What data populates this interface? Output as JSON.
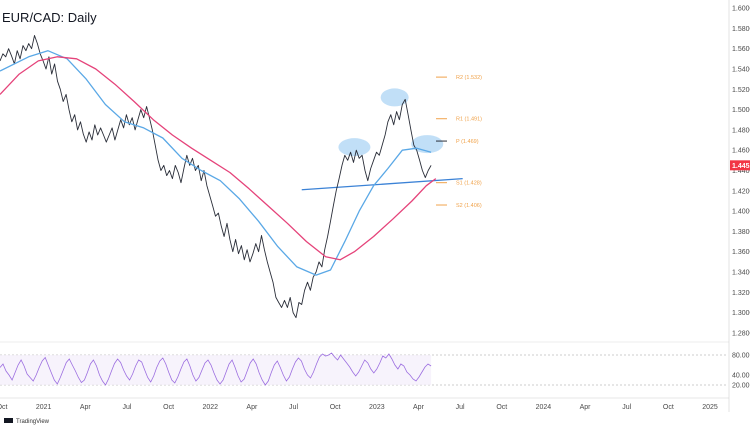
{
  "chart_data": {
    "type": "line",
    "title": "EUR/CAD: Daily",
    "y_axis": {
      "ticks": [
        "1.60000",
        "1.58000",
        "1.56000",
        "1.54000",
        "1.52000",
        "1.50000",
        "1.48000",
        "1.46000",
        "1.44000",
        "1.42000",
        "1.40000",
        "1.38000",
        "1.36000",
        "1.34000",
        "1.32000",
        "1.30000",
        "1.28000"
      ],
      "range": [
        1.275,
        1.605
      ]
    },
    "x_axis": {
      "ticks": [
        "Oct",
        "2021",
        "Apr",
        "Jul",
        "Oct",
        "2022",
        "Apr",
        "Jul",
        "Oct",
        "2023",
        "Apr",
        "Jul",
        "Oct",
        "2024",
        "Apr",
        "Jul",
        "Oct",
        "2025"
      ]
    },
    "current_price": {
      "label": "1.44510",
      "value": 1.4451,
      "color": "#f23645"
    },
    "series": [
      {
        "kind": "price",
        "color": "#2a2e39",
        "points": [
          [
            0,
            1.548
          ],
          [
            3,
            1.555
          ],
          [
            6,
            1.552
          ],
          [
            9,
            1.56
          ],
          [
            12,
            1.553
          ],
          [
            15,
            1.545
          ],
          [
            18,
            1.558
          ],
          [
            21,
            1.55
          ],
          [
            24,
            1.563
          ],
          [
            27,
            1.558
          ],
          [
            30,
            1.565
          ],
          [
            33,
            1.56
          ],
          [
            36,
            1.573
          ],
          [
            39,
            1.565
          ],
          [
            42,
            1.555
          ],
          [
            45,
            1.548
          ],
          [
            48,
            1.54
          ],
          [
            51,
            1.552
          ],
          [
            54,
            1.535
          ],
          [
            57,
            1.545
          ],
          [
            60,
            1.528
          ],
          [
            63,
            1.52
          ],
          [
            66,
            1.508
          ],
          [
            69,
            1.515
          ],
          [
            72,
            1.5
          ],
          [
            75,
            1.488
          ],
          [
            78,
            1.495
          ],
          [
            81,
            1.48
          ],
          [
            84,
            1.488
          ],
          [
            87,
            1.476
          ],
          [
            90,
            1.468
          ],
          [
            93,
            1.478
          ],
          [
            96,
            1.47
          ],
          [
            99,
            1.485
          ],
          [
            102,
            1.475
          ],
          [
            105,
            1.482
          ],
          [
            108,
            1.475
          ],
          [
            111,
            1.468
          ],
          [
            114,
            1.475
          ],
          [
            117,
            1.482
          ],
          [
            120,
            1.47
          ],
          [
            123,
            1.48
          ],
          [
            126,
            1.49
          ],
          [
            129,
            1.482
          ],
          [
            132,
            1.495
          ],
          [
            135,
            1.485
          ],
          [
            138,
            1.492
          ],
          [
            141,
            1.48
          ],
          [
            144,
            1.49
          ],
          [
            147,
            1.5
          ],
          [
            150,
            1.492
          ],
          [
            153,
            1.503
          ],
          [
            156,
            1.492
          ],
          [
            159,
            1.48
          ],
          [
            162,
            1.465
          ],
          [
            165,
            1.45
          ],
          [
            168,
            1.44
          ],
          [
            171,
            1.445
          ],
          [
            174,
            1.435
          ],
          [
            177,
            1.44
          ],
          [
            180,
            1.432
          ],
          [
            183,
            1.445
          ],
          [
            186,
            1.438
          ],
          [
            189,
            1.428
          ],
          [
            192,
            1.442
          ],
          [
            195,
            1.455
          ],
          [
            198,
            1.445
          ],
          [
            201,
            1.452
          ],
          [
            204,
            1.44
          ],
          [
            207,
            1.445
          ],
          [
            210,
            1.43
          ],
          [
            213,
            1.44
          ],
          [
            216,
            1.425
          ],
          [
            219,
            1.415
          ],
          [
            222,
            1.405
          ],
          [
            225,
            1.395
          ],
          [
            228,
            1.398
          ],
          [
            231,
            1.385
          ],
          [
            234,
            1.375
          ],
          [
            237,
            1.388
          ],
          [
            240,
            1.372
          ],
          [
            243,
            1.36
          ],
          [
            246,
            1.372
          ],
          [
            249,
            1.358
          ],
          [
            252,
            1.366
          ],
          [
            255,
            1.352
          ],
          [
            258,
            1.362
          ],
          [
            261,
            1.35
          ],
          [
            264,
            1.358
          ],
          [
            267,
            1.368
          ],
          [
            270,
            1.36
          ],
          [
            273,
            1.376
          ],
          [
            276,
            1.362
          ],
          [
            279,
            1.35
          ],
          [
            282,
            1.34
          ],
          [
            285,
            1.33
          ],
          [
            288,
            1.315
          ],
          [
            291,
            1.31
          ],
          [
            294,
            1.305
          ],
          [
            297,
            1.312
          ],
          [
            300,
            1.305
          ],
          [
            303,
            1.315
          ],
          [
            306,
            1.3
          ],
          [
            309,
            1.295
          ],
          [
            312,
            1.31
          ],
          [
            315,
            1.308
          ],
          [
            318,
            1.322
          ],
          [
            321,
            1.33
          ],
          [
            324,
            1.322
          ],
          [
            327,
            1.335
          ],
          [
            330,
            1.34
          ],
          [
            333,
            1.35
          ],
          [
            336,
            1.345
          ],
          [
            339,
            1.362
          ],
          [
            342,
            1.375
          ],
          [
            345,
            1.39
          ],
          [
            348,
            1.405
          ],
          [
            351,
            1.42
          ],
          [
            354,
            1.432
          ],
          [
            357,
            1.445
          ],
          [
            360,
            1.455
          ],
          [
            363,
            1.45
          ],
          [
            366,
            1.458
          ],
          [
            369,
            1.448
          ],
          [
            372,
            1.46
          ],
          [
            375,
            1.452
          ],
          [
            378,
            1.455
          ],
          [
            381,
            1.44
          ],
          [
            384,
            1.43
          ],
          [
            387,
            1.442
          ],
          [
            390,
            1.45
          ],
          [
            393,
            1.458
          ],
          [
            396,
            1.455
          ],
          [
            399,
            1.465
          ],
          [
            402,
            1.475
          ],
          [
            405,
            1.488
          ],
          [
            408,
            1.495
          ],
          [
            411,
            1.485
          ],
          [
            414,
            1.498
          ],
          [
            417,
            1.49
          ],
          [
            420,
            1.505
          ],
          [
            423,
            1.51
          ],
          [
            426,
            1.495
          ],
          [
            429,
            1.48
          ],
          [
            432,
            1.465
          ],
          [
            435,
            1.46
          ],
          [
            438,
            1.45
          ],
          [
            441,
            1.44
          ],
          [
            444,
            1.433
          ],
          [
            447,
            1.44
          ],
          [
            450,
            1.445
          ]
        ]
      },
      {
        "kind": "ma-fast",
        "color": "#5aa8e6",
        "points": [
          [
            0,
            1.538
          ],
          [
            30,
            1.552
          ],
          [
            50,
            1.558
          ],
          [
            70,
            1.55
          ],
          [
            90,
            1.53
          ],
          [
            110,
            1.505
          ],
          [
            130,
            1.488
          ],
          [
            150,
            1.482
          ],
          [
            170,
            1.472
          ],
          [
            190,
            1.452
          ],
          [
            210,
            1.44
          ],
          [
            230,
            1.43
          ],
          [
            250,
            1.412
          ],
          [
            270,
            1.39
          ],
          [
            290,
            1.365
          ],
          [
            310,
            1.345
          ],
          [
            330,
            1.337
          ],
          [
            345,
            1.342
          ],
          [
            360,
            1.37
          ],
          [
            375,
            1.4
          ],
          [
            390,
            1.425
          ],
          [
            405,
            1.442
          ],
          [
            420,
            1.46
          ],
          [
            435,
            1.462
          ],
          [
            450,
            1.458
          ]
        ]
      },
      {
        "kind": "ma-slow",
        "color": "#e5437a",
        "points": [
          [
            0,
            1.515
          ],
          [
            20,
            1.535
          ],
          [
            40,
            1.548
          ],
          [
            60,
            1.552
          ],
          [
            80,
            1.55
          ],
          [
            100,
            1.54
          ],
          [
            120,
            1.525
          ],
          [
            140,
            1.508
          ],
          [
            160,
            1.49
          ],
          [
            180,
            1.475
          ],
          [
            200,
            1.462
          ],
          [
            220,
            1.45
          ],
          [
            240,
            1.438
          ],
          [
            260,
            1.422
          ],
          [
            280,
            1.405
          ],
          [
            300,
            1.388
          ],
          [
            320,
            1.37
          ],
          [
            340,
            1.355
          ],
          [
            355,
            1.352
          ],
          [
            370,
            1.36
          ],
          [
            390,
            1.375
          ],
          [
            410,
            1.392
          ],
          [
            430,
            1.41
          ],
          [
            445,
            1.425
          ],
          [
            455,
            1.432
          ]
        ]
      }
    ],
    "levels": [
      {
        "label": "R2 (1.532)",
        "value": 1.532
      },
      {
        "label": "R1 (1.491)",
        "value": 1.491
      },
      {
        "label": "P (1.469)",
        "value": 1.469
      },
      {
        "label": "S1 (1.428)",
        "value": 1.428
      },
      {
        "label": "S2 (1.406)",
        "value": 1.406
      }
    ],
    "trendline": {
      "from": [
        315,
        1.421
      ],
      "to": [
        483,
        1.432
      ],
      "color": "#3b82d6"
    },
    "highlights": [
      {
        "x": 370,
        "y": 1.463,
        "rx": 16,
        "ry": 9
      },
      {
        "x": 412,
        "y": 1.512,
        "rx": 14,
        "ry": 9
      },
      {
        "x": 446,
        "y": 1.466,
        "rx": 16,
        "ry": 9
      }
    ],
    "rsi": {
      "ticks": [
        "80.00",
        "40.00",
        "20.00"
      ],
      "range": [
        0,
        100
      ],
      "color": "#9c6ee0",
      "values": [
        55,
        62,
        48,
        40,
        30,
        45,
        60,
        70,
        58,
        42,
        35,
        28,
        40,
        55,
        68,
        75,
        60,
        45,
        30,
        22,
        35,
        50,
        65,
        72,
        60,
        48,
        35,
        25,
        30,
        45,
        62,
        70,
        58,
        40,
        28,
        20,
        32,
        48,
        63,
        72,
        65,
        50,
        38,
        30,
        42,
        58,
        70,
        66,
        50,
        35,
        26,
        38,
        55,
        68,
        74,
        62,
        45,
        30,
        24,
        36,
        52,
        66,
        72,
        58,
        40,
        28,
        35,
        50,
        64,
        70,
        60,
        44,
        30,
        22,
        30,
        46,
        62,
        70,
        55,
        38,
        26,
        32,
        48,
        64,
        72,
        62,
        44,
        30,
        20,
        28,
        45,
        60,
        68,
        55,
        40,
        28,
        36,
        52,
        66,
        74,
        68,
        52,
        40,
        34,
        46,
        62,
        76,
        82,
        78,
        80,
        84,
        76,
        70,
        80,
        72,
        64,
        56,
        46,
        38,
        46,
        58,
        70,
        64,
        52,
        44,
        52,
        64,
        78,
        74,
        82,
        72,
        60,
        52,
        62,
        58,
        46,
        40,
        32,
        28,
        36,
        46,
        56,
        62,
        58
      ]
    }
  }
}
